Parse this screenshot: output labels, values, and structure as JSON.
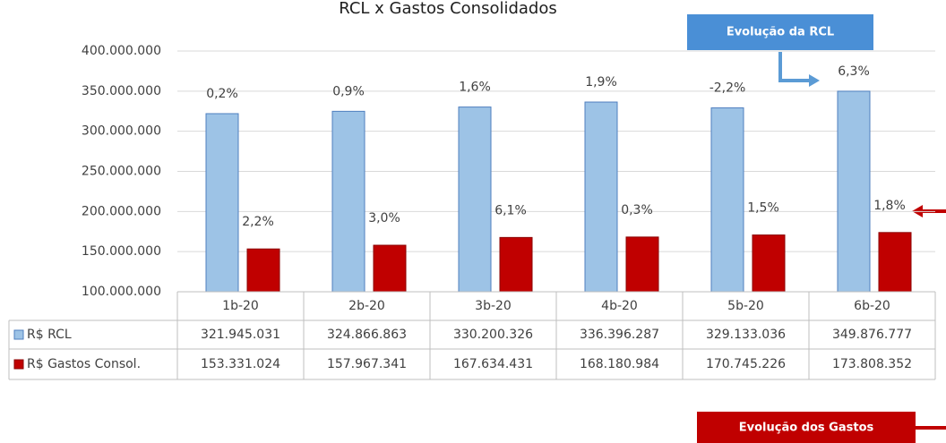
{
  "chart_data": {
    "type": "bar",
    "title": "RCL x Gastos Consolidados",
    "categories": [
      "1b-20",
      "2b-20",
      "3b-20",
      "4b-20",
      "5b-20",
      "6b-20"
    ],
    "series": [
      {
        "name": "R$ RCL",
        "color": "#9dc3e6",
        "values": [
          321945031,
          324866863,
          330200326,
          336396287,
          329133036,
          349876777
        ],
        "value_labels": [
          "321.945.031",
          "324.866.863",
          "330.200.326",
          "336.396.287",
          "329.133.036",
          "349.876.777"
        ],
        "annotations": [
          "0,2%",
          "0,9%",
          "1,6%",
          "1,9%",
          "-2,2%",
          "6,3%"
        ]
      },
      {
        "name": "R$ Gastos Consol.",
        "color": "#c00000",
        "values": [
          153331024,
          157967341,
          167634431,
          168180984,
          170745226,
          173808352
        ],
        "value_labels": [
          "153.331.024",
          "157.967.341",
          "167.634.431",
          "168.180.984",
          "170.745.226",
          "173.808.352"
        ],
        "annotations": [
          "2,2%",
          "3,0%",
          "6,1%",
          "0,3%",
          "1,5%",
          "1,8%"
        ]
      }
    ],
    "ylim": [
      100000000,
      400000000
    ],
    "yticks": [
      {
        "value": 100000000,
        "label": "100.000.000"
      },
      {
        "value": 150000000,
        "label": "150.000.000"
      },
      {
        "value": 200000000,
        "label": "200.000.000"
      },
      {
        "value": 250000000,
        "label": "250.000.000"
      },
      {
        "value": 300000000,
        "label": "300.000.000"
      },
      {
        "value": 350000000,
        "label": "350.000.000"
      },
      {
        "value": 400000000,
        "label": "400.000.000"
      }
    ],
    "grid": true,
    "callouts": [
      "Evolução  da RCL",
      "Evolução  dos Gastos"
    ]
  }
}
